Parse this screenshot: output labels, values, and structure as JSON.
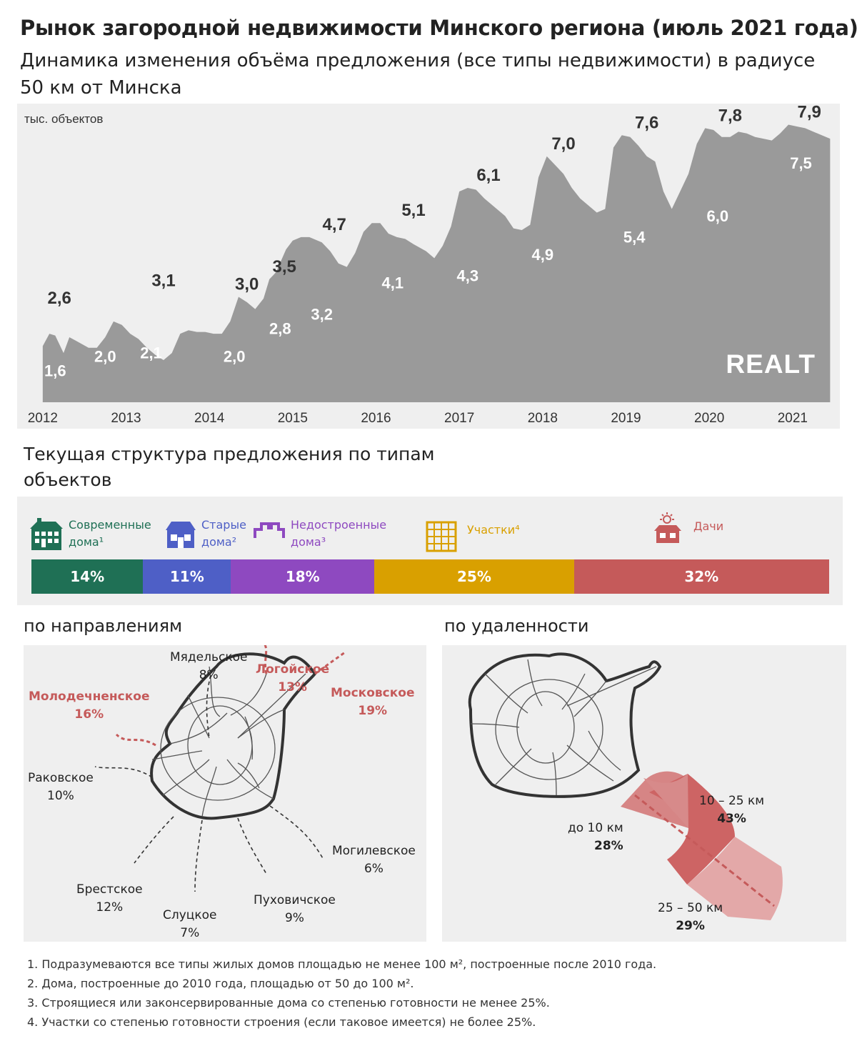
{
  "title": "Рынок загородной недвижимости Минского региона (июль 2021 года)",
  "subtitle": "Динамика изменения объёма предложения (все типы недвижимости) в радиусе 50 км от Минска",
  "logo_text": "REALT",
  "colors": {
    "area_fill": "#9a9a9a",
    "panel_bg": "#efefef",
    "modern": "#1f7055",
    "old": "#4e5fc6",
    "unfinished": "#8e49c0",
    "plots": "#d9a000",
    "dachas": "#c55a5a",
    "highlight_red": "#c55a5a"
  },
  "chart_data": {
    "type": "area",
    "ylabel": "тыс.  объектов",
    "x_ticks": [
      "2012",
      "2013",
      "2014",
      "2015",
      "2016",
      "2017",
      "2018",
      "2019",
      "2020",
      "2021"
    ],
    "series": [
      {
        "x": [
          2012.0,
          2012.08,
          2012.15,
          2012.25,
          2012.32,
          2012.4,
          2012.55,
          2012.65,
          2012.75,
          2012.85,
          2012.95,
          2013.05,
          2013.15,
          2013.25,
          2013.35,
          2013.45,
          2013.55,
          2013.65,
          2013.75,
          2013.85,
          2013.95,
          2014.05,
          2014.15,
          2014.25,
          2014.35,
          2014.45,
          2014.55,
          2014.65,
          2014.72,
          2014.8,
          2014.92,
          2015.0,
          2015.1,
          2015.2,
          2015.35,
          2015.45,
          2015.55,
          2015.65,
          2015.75,
          2015.85,
          2015.95,
          2016.05,
          2016.15,
          2016.25,
          2016.35,
          2016.45,
          2016.6,
          2016.7,
          2016.8,
          2016.9,
          2017.0,
          2017.1,
          2017.2,
          2017.3,
          2017.45,
          2017.55,
          2017.65,
          2017.75,
          2017.85,
          2017.95,
          2018.05,
          2018.15,
          2018.25,
          2018.35,
          2018.45,
          2018.55,
          2018.65,
          2018.75,
          2018.85,
          2018.95,
          2019.05,
          2019.15,
          2019.25,
          2019.35,
          2019.45,
          2019.55,
          2019.65,
          2019.75,
          2019.85,
          2019.95,
          2020.05,
          2020.15,
          2020.25,
          2020.35,
          2020.45,
          2020.55,
          2020.65,
          2020.75,
          2020.85,
          2020.95,
          2021.05,
          2021.15,
          2021.25,
          2021.35,
          2021.45
        ],
        "y": [
          1.6,
          1.95,
          1.9,
          1.4,
          1.85,
          1.75,
          1.55,
          1.55,
          1.85,
          2.3,
          2.2,
          1.95,
          1.8,
          1.55,
          1.35,
          1.2,
          1.4,
          1.95,
          2.05,
          2.0,
          2.0,
          1.95,
          1.95,
          2.3,
          3.0,
          2.85,
          2.65,
          2.95,
          3.5,
          3.7,
          4.35,
          4.6,
          4.7,
          4.7,
          4.55,
          4.3,
          3.95,
          3.85,
          4.25,
          4.85,
          5.1,
          5.1,
          4.8,
          4.7,
          4.65,
          4.5,
          4.3,
          4.1,
          4.45,
          5.0,
          6.0,
          6.1,
          6.05,
          5.8,
          5.5,
          5.3,
          4.95,
          4.9,
          5.05,
          6.4,
          7.0,
          6.75,
          6.5,
          6.1,
          5.8,
          5.6,
          5.4,
          5.5,
          7.25,
          7.6,
          7.55,
          7.3,
          7.0,
          6.85,
          6.0,
          5.5,
          6.0,
          6.5,
          7.35,
          7.8,
          7.75,
          7.55,
          7.55,
          7.7,
          7.65,
          7.55,
          7.5,
          7.45,
          7.65,
          7.9,
          7.85,
          7.8,
          7.7,
          7.6,
          7.5
        ]
      }
    ],
    "annotations": [
      {
        "x": 2012.2,
        "y": 2.6,
        "label": "2,6",
        "pos": "above"
      },
      {
        "x": 2012.15,
        "y": 1.6,
        "label": "1,6",
        "pos": "below"
      },
      {
        "x": 2012.75,
        "y": 2.0,
        "label": "2,0",
        "pos": "below"
      },
      {
        "x": 2013.45,
        "y": 3.1,
        "label": "3,1",
        "pos": "above"
      },
      {
        "x": 2013.3,
        "y": 2.1,
        "label": "2,1",
        "pos": "below"
      },
      {
        "x": 2014.45,
        "y": 3.0,
        "label": "3,0",
        "pos": "above"
      },
      {
        "x": 2014.3,
        "y": 2.0,
        "label": "2,0",
        "pos": "below"
      },
      {
        "x": 2014.9,
        "y": 3.5,
        "label": "3,5",
        "pos": "above"
      },
      {
        "x": 2014.85,
        "y": 2.8,
        "label": "2,8",
        "pos": "below"
      },
      {
        "x": 2015.5,
        "y": 4.7,
        "label": "4,7",
        "pos": "above"
      },
      {
        "x": 2015.35,
        "y": 3.2,
        "label": "3,2",
        "pos": "below"
      },
      {
        "x": 2016.45,
        "y": 5.1,
        "label": "5,1",
        "pos": "above"
      },
      {
        "x": 2016.2,
        "y": 4.1,
        "label": "4,1",
        "pos": "below"
      },
      {
        "x": 2017.35,
        "y": 6.1,
        "label": "6,1",
        "pos": "above"
      },
      {
        "x": 2017.1,
        "y": 4.3,
        "label": "4,3",
        "pos": "below"
      },
      {
        "x": 2018.25,
        "y": 7.0,
        "label": "7,0",
        "pos": "above"
      },
      {
        "x": 2018.0,
        "y": 4.9,
        "label": "4,9",
        "pos": "below"
      },
      {
        "x": 2019.25,
        "y": 7.6,
        "label": "7,6",
        "pos": "above"
      },
      {
        "x": 2019.1,
        "y": 5.4,
        "label": "5,4",
        "pos": "below"
      },
      {
        "x": 2020.25,
        "y": 7.8,
        "label": "7,8",
        "pos": "above"
      },
      {
        "x": 2020.1,
        "y": 6.0,
        "label": "6,0",
        "pos": "below"
      },
      {
        "x": 2021.2,
        "y": 7.9,
        "label": "7,9",
        "pos": "above"
      },
      {
        "x": 2021.1,
        "y": 7.5,
        "label": "7,5",
        "pos": "below"
      }
    ],
    "xlim": [
      2011.95,
      2021.55
    ],
    "ylim": [
      0,
      8.5
    ]
  },
  "structure": {
    "heading": "Текущая структура предложения по типам объектов",
    "types": [
      {
        "key": "modern",
        "label_line1": "Современные",
        "label_line2": "дома¹",
        "share_text": "14%",
        "share": 14,
        "icon": "modern-house-icon"
      },
      {
        "key": "old",
        "label_line1": "Старые",
        "label_line2": "дома²",
        "share_text": "11%",
        "share": 11,
        "icon": "old-house-icon"
      },
      {
        "key": "unfinished",
        "label_line1": "Недостроенные",
        "label_line2": "дома³",
        "share_text": "18%",
        "share": 18,
        "icon": "unfinished-house-icon"
      },
      {
        "key": "plots",
        "label_line1": "Участки⁴",
        "label_line2": "",
        "share_text": "25%",
        "share": 25,
        "icon": "plot-grid-icon"
      },
      {
        "key": "dachas",
        "label_line1": "Дачи",
        "label_line2": "",
        "share_text": "32%",
        "share": 32,
        "icon": "dacha-sun-icon"
      }
    ]
  },
  "directions": {
    "heading": "по направлениям",
    "items": [
      {
        "name": "Мядельское",
        "pct": "8%",
        "highlight": false
      },
      {
        "name": "Логойское",
        "pct": "13%",
        "highlight": true
      },
      {
        "name": "Московское",
        "pct": "19%",
        "highlight": true
      },
      {
        "name": "Молодечненское",
        "pct": "16%",
        "highlight": true
      },
      {
        "name": "Раковское",
        "pct": "10%",
        "highlight": false
      },
      {
        "name": "Могилевское",
        "pct": "6%",
        "highlight": false
      },
      {
        "name": "Брестское",
        "pct": "12%",
        "highlight": false
      },
      {
        "name": "Пуховичское",
        "pct": "9%",
        "highlight": false
      },
      {
        "name": "Слуцкое",
        "pct": "7%",
        "highlight": false
      }
    ]
  },
  "distance": {
    "heading": "по удаленности",
    "items": [
      {
        "range": "до 10 км",
        "pct": "28%"
      },
      {
        "range": "10 – 25 км",
        "pct": "43%"
      },
      {
        "range": "25 – 50 км",
        "pct": "29%"
      }
    ]
  },
  "footnotes": [
    "1. Подразумеваются все типы жилых домов площадью не менее 100 м², построенные после 2010 года.",
    "2. Дома, построенные до 2010 года, площадью от 50 до 100 м².",
    "3. Строящиеся или законсервированные дома со степенью готовности не менее 25%.",
    "4. Участки со степенью готовности строения (если таковое имеется) не более 25%."
  ]
}
